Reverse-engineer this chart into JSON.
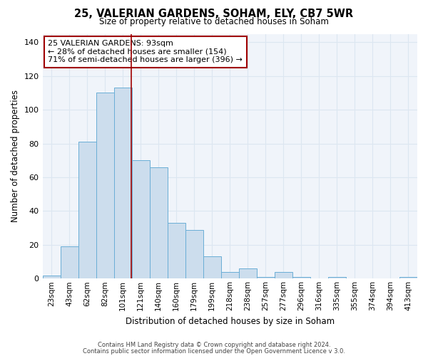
{
  "title": "25, VALERIAN GARDENS, SOHAM, ELY, CB7 5WR",
  "subtitle": "Size of property relative to detached houses in Soham",
  "xlabel": "Distribution of detached houses by size in Soham",
  "ylabel": "Number of detached properties",
  "bar_labels": [
    "23sqm",
    "43sqm",
    "62sqm",
    "82sqm",
    "101sqm",
    "121sqm",
    "140sqm",
    "160sqm",
    "179sqm",
    "199sqm",
    "218sqm",
    "238sqm",
    "257sqm",
    "277sqm",
    "296sqm",
    "316sqm",
    "335sqm",
    "355sqm",
    "374sqm",
    "394sqm",
    "413sqm"
  ],
  "bar_values": [
    2,
    19,
    81,
    110,
    113,
    70,
    66,
    33,
    29,
    13,
    4,
    6,
    1,
    4,
    1,
    0,
    1,
    0,
    0,
    0,
    1
  ],
  "bar_color": "#ccdded",
  "bar_edge_color": "#6aaed6",
  "ylim": [
    0,
    145
  ],
  "yticks": [
    0,
    20,
    40,
    60,
    80,
    100,
    120,
    140
  ],
  "property_label": "25 VALERIAN GARDENS: 93sqm",
  "pct_smaller_label": "← 28% of detached houses are smaller (154)",
  "pct_larger_label": "71% of semi-detached houses are larger (396) →",
  "vline_x": 4.47,
  "vline_color": "#a00000",
  "annotation_box_edge_color": "#a00000",
  "grid_color": "#dce6f1",
  "footer_line1": "Contains HM Land Registry data © Crown copyright and database right 2024.",
  "footer_line2": "Contains public sector information licensed under the Open Government Licence v 3.0."
}
